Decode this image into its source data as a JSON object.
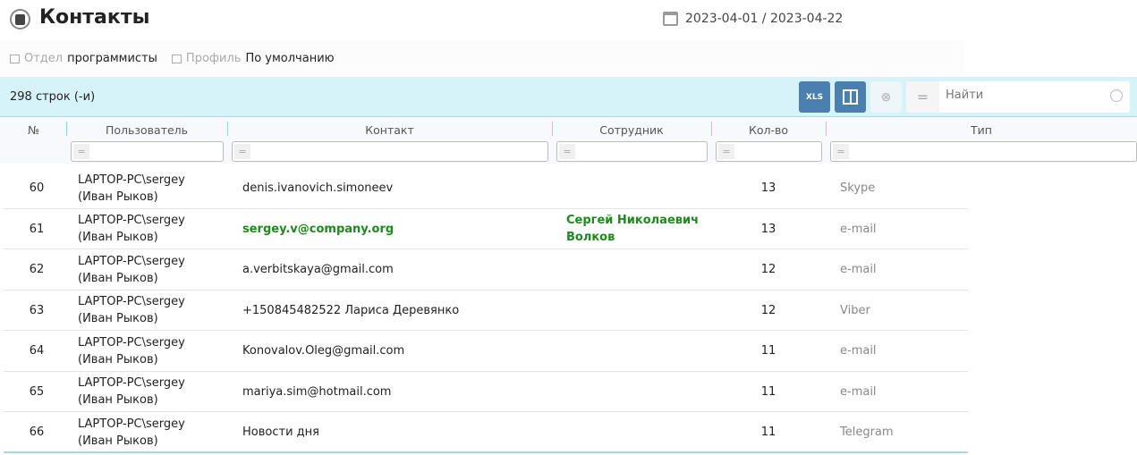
{
  "header": {
    "title": "Контакты",
    "date_range": "2023-04-01 / 2023-04-22"
  },
  "filters": [
    {
      "key": "Отдел",
      "value": "программисты"
    },
    {
      "key": "Профиль",
      "value": "По умолчанию"
    }
  ],
  "toolbar": {
    "row_count": "298 строк (-и)",
    "xls_label": "XLS",
    "search_placeholder": "Найти"
  },
  "columns": [
    "№",
    "Пользователь",
    "Контакт",
    "Сотрудник",
    "Кол-во",
    "Тип"
  ],
  "rows": [
    {
      "n": "60",
      "user1": "LAPTOP-PC\\sergey",
      "user2": "(Иван Рыков)",
      "contact": "denis.ivanovich.simoneev",
      "employee1": "",
      "employee2": "",
      "qty": "13",
      "type": "Skype"
    },
    {
      "n": "61",
      "user1": "LAPTOP-PC\\sergey",
      "user2": "(Иван Рыков)",
      "contact": "sergey.v@company.org",
      "employee1": "Сергей Николаевич",
      "employee2": "Волков",
      "qty": "13",
      "type": "e-mail",
      "highlight": true
    },
    {
      "n": "62",
      "user1": "LAPTOP-PC\\sergey",
      "user2": "(Иван Рыков)",
      "contact": "a.verbitskaya@gmail.com",
      "employee1": "",
      "employee2": "",
      "qty": "12",
      "type": "e-mail"
    },
    {
      "n": "63",
      "user1": "LAPTOP-PC\\sergey",
      "user2": "(Иван Рыков)",
      "contact": "+150845482522 Лариса Деревянко",
      "employee1": "",
      "employee2": "",
      "qty": "12",
      "type": "Viber"
    },
    {
      "n": "64",
      "user1": "LAPTOP-PC\\sergey",
      "user2": "(Иван Рыков)",
      "contact": "Konovalov.Oleg@gmail.com",
      "employee1": "",
      "employee2": "",
      "qty": "11",
      "type": "e-mail"
    },
    {
      "n": "65",
      "user1": "LAPTOP-PC\\sergey",
      "user2": "(Иван Рыков)",
      "contact": "mariya.sim@hotmail.com",
      "employee1": "",
      "employee2": "",
      "qty": "11",
      "type": "e-mail"
    },
    {
      "n": "66",
      "user1": "LAPTOP-PC\\sergey",
      "user2": "(Иван Рыков)",
      "contact": "Новости дня",
      "employee1": "",
      "employee2": "",
      "qty": "11",
      "type": "Telegram"
    }
  ]
}
